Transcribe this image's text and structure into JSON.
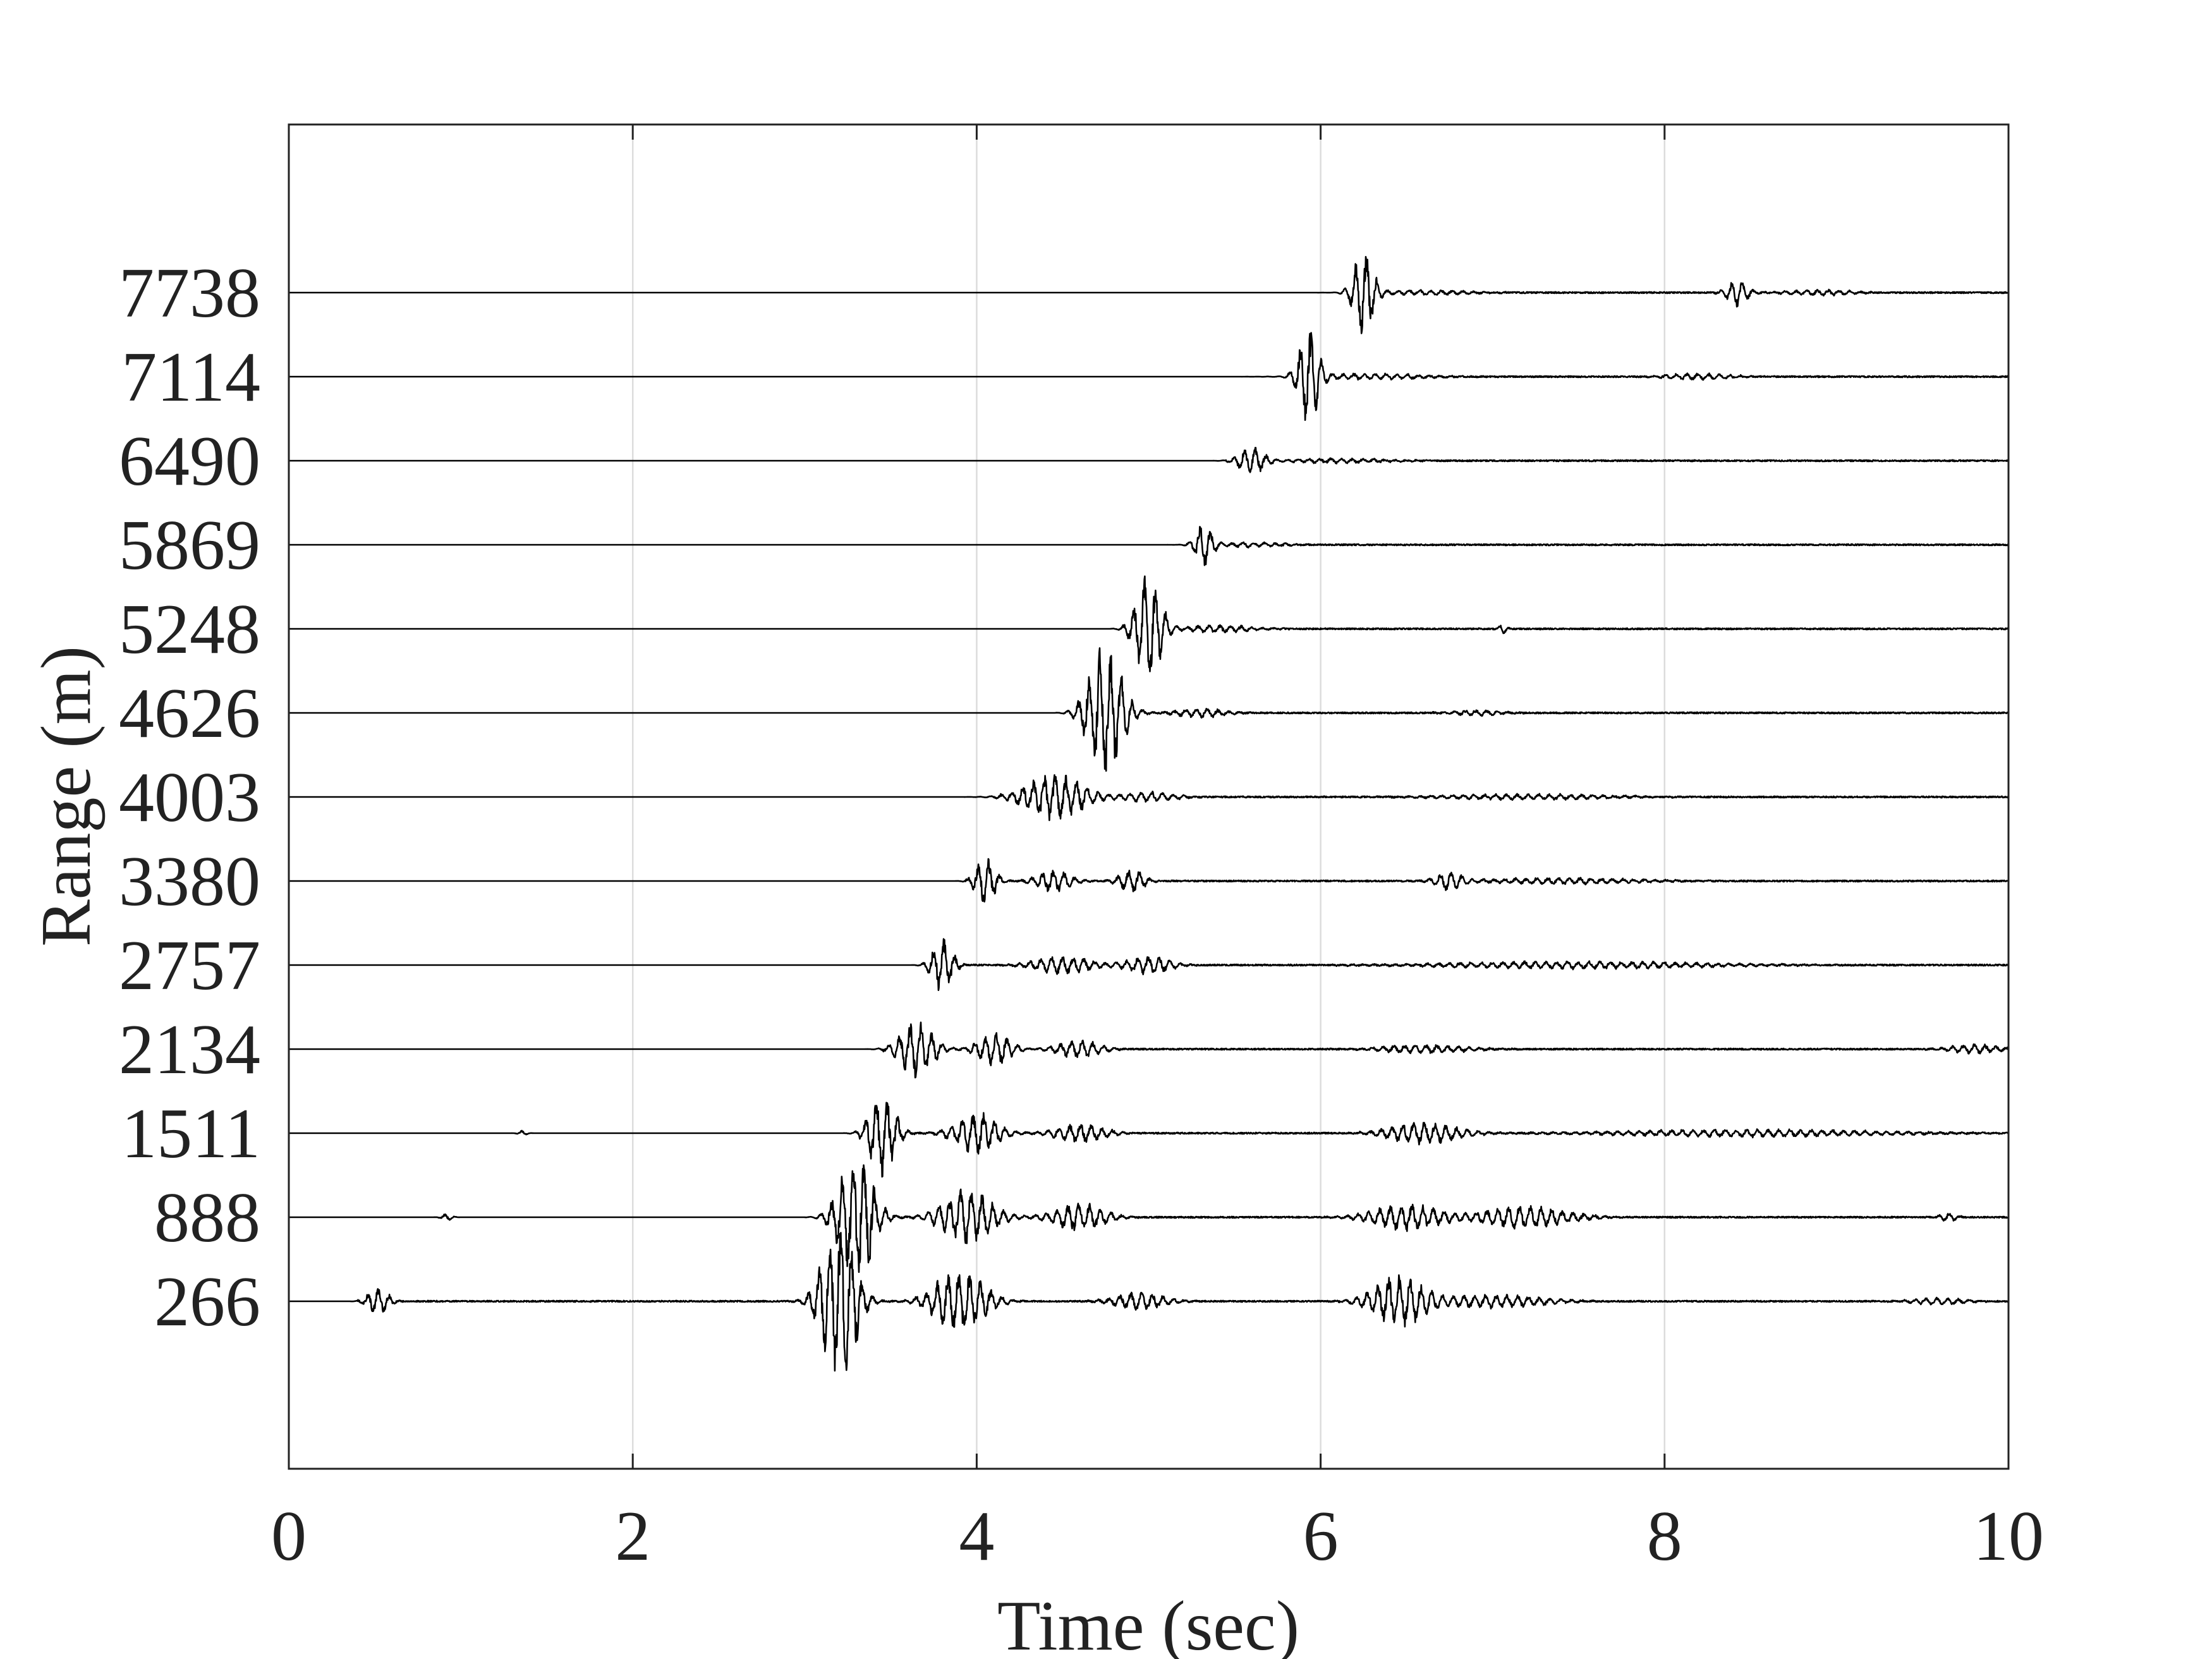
{
  "chart_data": {
    "type": "line",
    "title": "",
    "xlabel": "Time (sec)",
    "ylabel": "Range (m)",
    "xlim": [
      0,
      10
    ],
    "xticks": [
      0,
      2,
      4,
      6,
      8,
      10
    ],
    "xtick_labels": [
      "0",
      "2",
      "4",
      "6",
      "8",
      "10"
    ],
    "grid": "vertical",
    "legend": "none",
    "colors": {
      "trace": "#000000",
      "grid": "#dcdcdc",
      "axis": "#222222"
    },
    "traces": [
      {
        "label": "7738",
        "range_m": 7738,
        "packets": [
          {
            "t": 6.25,
            "amp": 0.9,
            "dur": 0.12
          },
          {
            "t": 6.6,
            "amp": 0.06,
            "dur": 0.5
          },
          {
            "t": 8.42,
            "amp": 0.3,
            "dur": 0.12
          },
          {
            "t": 8.9,
            "amp": 0.06,
            "dur": 0.4
          }
        ]
      },
      {
        "label": "7114",
        "range_m": 7114,
        "packets": [
          {
            "t": 5.93,
            "amp": 1.0,
            "dur": 0.12
          },
          {
            "t": 6.3,
            "amp": 0.07,
            "dur": 0.6
          },
          {
            "t": 8.2,
            "amp": 0.07,
            "dur": 0.4
          }
        ]
      },
      {
        "label": "6490",
        "range_m": 6490,
        "packets": [
          {
            "t": 5.6,
            "amp": 0.3,
            "dur": 0.15
          },
          {
            "t": 6.1,
            "amp": 0.05,
            "dur": 0.6
          }
        ]
      },
      {
        "label": "5869",
        "range_m": 5869,
        "packets": [
          {
            "t": 5.32,
            "amp": 0.5,
            "dur": 0.1
          },
          {
            "t": 5.6,
            "amp": 0.05,
            "dur": 0.4
          }
        ]
      },
      {
        "label": "5248",
        "range_m": 5248,
        "packets": [
          {
            "t": 5.0,
            "amp": 1.2,
            "dur": 0.15
          },
          {
            "t": 5.4,
            "amp": 0.08,
            "dur": 0.4
          },
          {
            "t": 7.06,
            "amp": 0.1,
            "dur": 0.05
          }
        ]
      },
      {
        "label": "4626",
        "range_m": 4626,
        "packets": [
          {
            "t": 4.75,
            "amp": 1.5,
            "dur": 0.2
          },
          {
            "t": 5.3,
            "amp": 0.1,
            "dur": 0.3
          },
          {
            "t": 6.9,
            "amp": 0.06,
            "dur": 0.3
          }
        ]
      },
      {
        "label": "4003",
        "range_m": 4003,
        "packets": [
          {
            "t": 4.45,
            "amp": 0.5,
            "dur": 0.35
          },
          {
            "t": 5.0,
            "amp": 0.12,
            "dur": 0.3
          },
          {
            "t": 7.2,
            "amp": 0.06,
            "dur": 1.0
          }
        ]
      },
      {
        "label": "3380",
        "range_m": 3380,
        "packets": [
          {
            "t": 4.05,
            "amp": 0.5,
            "dur": 0.12
          },
          {
            "t": 4.45,
            "amp": 0.25,
            "dur": 0.2
          },
          {
            "t": 4.9,
            "amp": 0.25,
            "dur": 0.15
          },
          {
            "t": 6.75,
            "amp": 0.2,
            "dur": 0.15
          },
          {
            "t": 7.4,
            "amp": 0.07,
            "dur": 0.9
          }
        ]
      },
      {
        "label": "2757",
        "range_m": 2757,
        "packets": [
          {
            "t": 3.8,
            "amp": 0.6,
            "dur": 0.12
          },
          {
            "t": 4.5,
            "amp": 0.2,
            "dur": 0.35
          },
          {
            "t": 5.0,
            "amp": 0.2,
            "dur": 0.25
          },
          {
            "t": 7.5,
            "amp": 0.08,
            "dur": 1.6
          }
        ]
      },
      {
        "label": "2134",
        "range_m": 2134,
        "packets": [
          {
            "t": 3.65,
            "amp": 0.6,
            "dur": 0.2
          },
          {
            "t": 4.1,
            "amp": 0.35,
            "dur": 0.2
          },
          {
            "t": 4.6,
            "amp": 0.2,
            "dur": 0.25
          },
          {
            "t": 6.6,
            "amp": 0.1,
            "dur": 0.5
          },
          {
            "t": 9.8,
            "amp": 0.1,
            "dur": 0.3
          }
        ]
      },
      {
        "label": "1511",
        "range_m": 1511,
        "packets": [
          {
            "t": 1.36,
            "amp": 0.06,
            "dur": 0.05
          },
          {
            "t": 3.45,
            "amp": 1.0,
            "dur": 0.15
          },
          {
            "t": 4.0,
            "amp": 0.45,
            "dur": 0.25
          },
          {
            "t": 4.6,
            "amp": 0.2,
            "dur": 0.3
          },
          {
            "t": 6.6,
            "amp": 0.25,
            "dur": 0.4
          },
          {
            "t": 8.5,
            "amp": 0.08,
            "dur": 1.6
          }
        ]
      },
      {
        "label": "888",
        "range_m": 888,
        "packets": [
          {
            "t": 0.92,
            "amp": 0.08,
            "dur": 0.06
          },
          {
            "t": 3.3,
            "amp": 1.5,
            "dur": 0.2
          },
          {
            "t": 3.95,
            "amp": 0.6,
            "dur": 0.3
          },
          {
            "t": 4.6,
            "amp": 0.3,
            "dur": 0.3
          },
          {
            "t": 6.5,
            "amp": 0.3,
            "dur": 0.4
          },
          {
            "t": 7.2,
            "amp": 0.25,
            "dur": 0.5
          },
          {
            "t": 9.65,
            "amp": 0.1,
            "dur": 0.1
          }
        ]
      },
      {
        "label": "266",
        "range_m": 266,
        "packets": [
          {
            "t": 0.52,
            "amp": 0.3,
            "dur": 0.12
          },
          {
            "t": 3.2,
            "amp": 1.8,
            "dur": 0.2
          },
          {
            "t": 3.9,
            "amp": 0.7,
            "dur": 0.3
          },
          {
            "t": 4.95,
            "amp": 0.2,
            "dur": 0.3
          },
          {
            "t": 6.45,
            "amp": 0.55,
            "dur": 0.3
          },
          {
            "t": 7.0,
            "amp": 0.15,
            "dur": 0.6
          },
          {
            "t": 9.6,
            "amp": 0.08,
            "dur": 0.3
          }
        ]
      }
    ]
  }
}
